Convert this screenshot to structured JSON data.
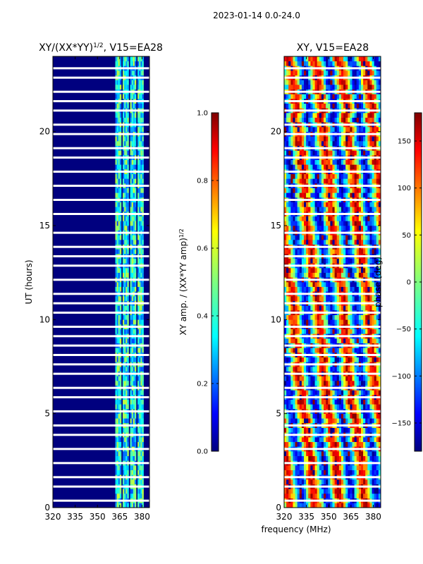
{
  "figure": {
    "suptitle": "2023-01-14 0.0-24.0",
    "shared_xlabel": "frequency (MHz)"
  },
  "chart_data": [
    {
      "type": "heatmap",
      "title_main": "XY/(XX*YY)",
      "title_exp": "1/2",
      "title_suffix": ", V15=EA28",
      "ylabel": "UT (hours)",
      "xlim": [
        320,
        385
      ],
      "ylim": [
        0,
        24
      ],
      "xticks": [
        320,
        335,
        350,
        365,
        380
      ],
      "yticks": [
        0,
        5,
        10,
        15,
        20
      ],
      "colormap": "jet",
      "colorbar": {
        "label_main": "XY amp. / (XX*YY amp)",
        "label_exp": "1/2",
        "range": [
          0,
          1
        ],
        "ticks": [
          "0.0",
          "0.2",
          "0.4",
          "0.6",
          "0.8",
          "1.0"
        ]
      },
      "band_edges_mhz": [
        362,
        366,
        367,
        371,
        372,
        376,
        377,
        381
      ],
      "flagged_hours": [
        0.3,
        1.1,
        1.7,
        2.3,
        3.0,
        3.8,
        4.4,
        5.2,
        5.9,
        6.4,
        7.0,
        7.6,
        8.2,
        8.5,
        9.0,
        9.6,
        10.3,
        10.9,
        11.4,
        12.0,
        12.8,
        13.4,
        13.9,
        14.7,
        15.5,
        16.3,
        17.0,
        17.8,
        18.6,
        19.2,
        19.9,
        20.3,
        21.0,
        21.5,
        22.2,
        22.9,
        23.4
      ]
    },
    {
      "type": "heatmap",
      "title_main": "XY, V15=EA28",
      "ylabel": "",
      "xlim": [
        320,
        385
      ],
      "ylim": [
        0,
        24
      ],
      "xticks": [
        320,
        335,
        350,
        365,
        380
      ],
      "yticks": [
        0,
        5,
        10,
        15,
        20
      ],
      "colormap": "jet",
      "colorbar": {
        "label_main": "phase (deg)",
        "range": [
          -180,
          180
        ],
        "ticks": [
          "−150",
          "−100",
          "−50",
          "0",
          "50",
          "100",
          "150"
        ],
        "tick_values": [
          -150,
          -100,
          -50,
          0,
          50,
          100,
          150
        ]
      },
      "flagged_hours": [
        0.3,
        1.1,
        1.7,
        2.3,
        3.0,
        3.8,
        4.4,
        5.2,
        5.9,
        6.4,
        7.0,
        7.6,
        8.2,
        8.5,
        9.0,
        9.6,
        10.3,
        10.9,
        11.4,
        12.0,
        12.8,
        13.4,
        13.9,
        14.7,
        15.5,
        16.3,
        17.0,
        17.8,
        18.6,
        19.2,
        19.9,
        20.3,
        21.0,
        21.5,
        22.2,
        22.9,
        23.4
      ]
    }
  ]
}
